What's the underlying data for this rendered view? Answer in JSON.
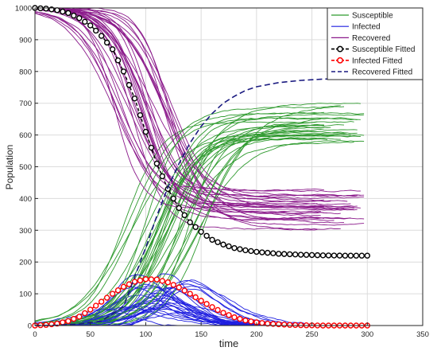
{
  "chart_data": {
    "type": "line",
    "title": "",
    "xlabel": "time",
    "ylabel": "Population",
    "xlim": [
      0,
      350
    ],
    "ylim": [
      0,
      1000
    ],
    "x_ticks": [
      "0",
      "50",
      "100",
      "150",
      "200",
      "250",
      "300",
      "350"
    ],
    "y_ticks": [
      "0",
      "100",
      "200",
      "300",
      "400",
      "500",
      "600",
      "700",
      "800",
      "900",
      "1000"
    ],
    "grid": true,
    "legend_position": "top-right",
    "legend": [
      {
        "label": "Susceptible",
        "color": "#2e9a2e",
        "style": "solid"
      },
      {
        "label": "Infected",
        "color": "#1f1fe0",
        "style": "solid"
      },
      {
        "label": "Recovered",
        "color": "#8b1a8b",
        "style": "solid"
      },
      {
        "label": "Susceptible Fitted",
        "color": "#000000",
        "style": "dashed-circle"
      },
      {
        "label": "Infected Fitted",
        "color": "#ff0000",
        "style": "dashed-circle"
      },
      {
        "label": "Recovered Fitted",
        "color": "#1a1a80",
        "style": "dashed"
      }
    ],
    "series": [
      {
        "role": "susceptible-fitted",
        "color": "#000000",
        "x": [
          0,
          10,
          20,
          30,
          40,
          50,
          60,
          70,
          80,
          90,
          100,
          110,
          120,
          130,
          140,
          150,
          160,
          170,
          180,
          190,
          200,
          220,
          240,
          260,
          280,
          300
        ],
        "y": [
          1000,
          998,
          993,
          984,
          968,
          945,
          912,
          870,
          800,
          715,
          610,
          510,
          430,
          370,
          325,
          295,
          270,
          255,
          244,
          237,
          232,
          226,
          223,
          221,
          220,
          220
        ]
      },
      {
        "role": "infected-fitted",
        "color": "#ff0000",
        "x": [
          0,
          10,
          20,
          30,
          40,
          50,
          60,
          70,
          80,
          90,
          100,
          110,
          120,
          130,
          140,
          150,
          160,
          170,
          180,
          190,
          200,
          210,
          220,
          230,
          240,
          260,
          280,
          300
        ],
        "y": [
          0,
          2,
          6,
          14,
          28,
          50,
          75,
          100,
          122,
          138,
          146,
          145,
          136,
          120,
          100,
          78,
          58,
          40,
          26,
          16,
          10,
          6,
          4,
          2,
          1,
          0,
          0,
          0
        ]
      },
      {
        "role": "recovered-fitted",
        "color": "#1a1a80",
        "x": [
          0,
          20,
          40,
          60,
          80,
          100,
          110,
          120,
          130,
          140,
          150,
          160,
          170,
          180,
          190,
          200,
          220,
          240,
          260,
          280,
          300
        ],
        "y": [
          0,
          1,
          5,
          14,
          60,
          245,
          345,
          435,
          510,
          575,
          627,
          668,
          700,
          722,
          740,
          752,
          765,
          772,
          776,
          778,
          780
        ]
      }
    ],
    "stochastic_runs": {
      "susceptible": 30,
      "infected": 30,
      "recovered": 30
    }
  }
}
